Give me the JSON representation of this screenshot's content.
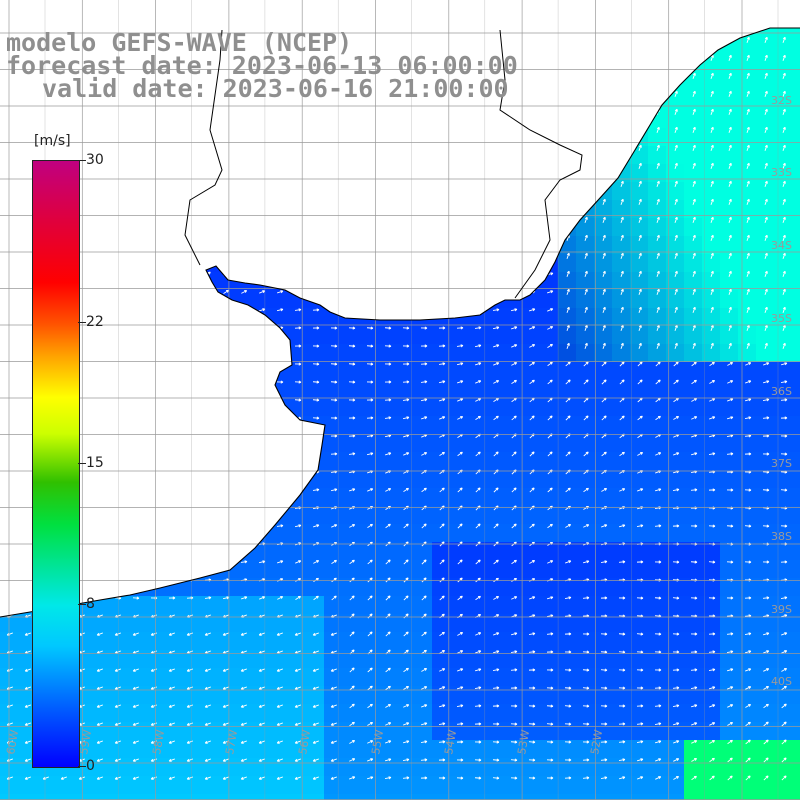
{
  "title": {
    "model": "modelo GEFS-WAVE (NCEP)",
    "forecast": "forecast date: 2023-06-13 06:00:00",
    "valid": "valid date: 2023-06-16 21:00:00"
  },
  "colorbar": {
    "unit": "[m/s]",
    "ticks": [
      {
        "label": "30",
        "value": 30
      },
      {
        "label": "22",
        "value": 22
      },
      {
        "label": "15",
        "value": 15
      },
      {
        "label": "8",
        "value": 8
      },
      {
        "label": "0",
        "value": 0
      }
    ],
    "range": [
      0,
      30
    ]
  },
  "axes": {
    "lat_labels": [
      "32S",
      "33S",
      "34S",
      "35S",
      "36S",
      "37S",
      "38S",
      "39S",
      "40S"
    ],
    "lon_labels": [
      "60W",
      "59W",
      "58W",
      "57W",
      "56W",
      "55W",
      "54W",
      "53W",
      "52W"
    ]
  },
  "colors": {
    "title_text": "#8f8f8f",
    "land": "#ffffff",
    "coastline": "#000000",
    "gridline": "#9a9a9a",
    "vector": "#ffffff",
    "axis_label": "#9a9a9a"
  },
  "legend": {
    "placement": "left"
  }
}
